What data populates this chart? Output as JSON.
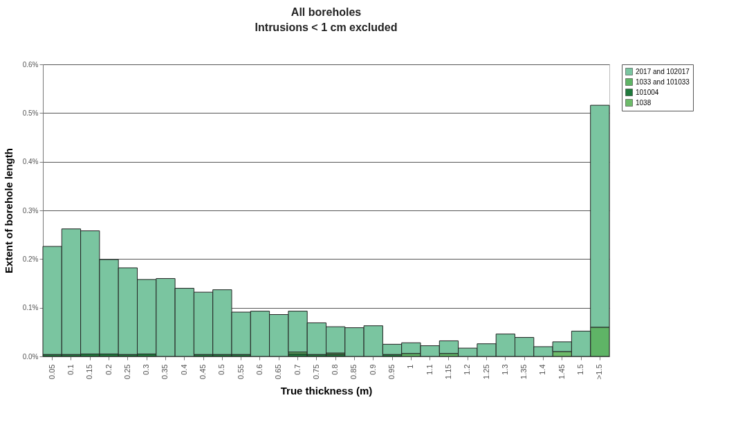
{
  "chart_data": {
    "type": "bar",
    "title": "All boreholes",
    "subtitle": "Intrusions < 1 cm excluded",
    "xlabel": "True thickness (m)",
    "ylabel": "Extent of borehole length",
    "categories": [
      "0.05",
      "0.1",
      "0.15",
      "0.2",
      "0.25",
      "0.3",
      "0.35",
      "0.4",
      "0.45",
      "0.5",
      "0.55",
      "0.6",
      "0.65",
      "0.7",
      "0.75",
      "0.8",
      "0.85",
      "0.9",
      "0.95",
      "1",
      "1.1",
      "1.15",
      "1.2",
      "1.25",
      "1.3",
      "1.35",
      "1.4",
      "1.45",
      "1.5",
      ">1.5"
    ],
    "stacked": true,
    "series": [
      {
        "name": "1038",
        "color": "#6dbb6a",
        "values": [
          null,
          null,
          null,
          null,
          null,
          null,
          null,
          null,
          null,
          null,
          null,
          null,
          null,
          null,
          null,
          null,
          null,
          null,
          null,
          null,
          null,
          null,
          null,
          null,
          null,
          null,
          null,
          0.01,
          null,
          null
        ]
      },
      {
        "name": "101004",
        "color": "#1f7a3c",
        "values": [
          0.004,
          0.004,
          0.005,
          0.005,
          0.004,
          0.005,
          null,
          null,
          0.004,
          0.004,
          0.004,
          null,
          null,
          0.005,
          0.004,
          0.004,
          null,
          null,
          0.004,
          null,
          null,
          null,
          null,
          null,
          null,
          null,
          null,
          null,
          null,
          null
        ]
      },
      {
        "name": "1033 and 101033",
        "color": "#5fb466",
        "values": [
          null,
          null,
          null,
          null,
          null,
          null,
          null,
          null,
          null,
          null,
          null,
          null,
          null,
          0.004,
          null,
          0.003,
          null,
          null,
          null,
          0.006,
          null,
          0.006,
          null,
          null,
          null,
          null,
          null,
          null,
          null,
          0.06
        ]
      },
      {
        "name": "2017 and 102017",
        "color": "#7ac5a0",
        "values": [
          0.222,
          0.258,
          0.253,
          0.194,
          0.178,
          0.153,
          0.16,
          0.14,
          0.128,
          0.133,
          0.087,
          0.093,
          0.086,
          0.084,
          0.065,
          0.054,
          0.059,
          0.063,
          0.021,
          0.022,
          0.022,
          0.026,
          0.017,
          0.026,
          0.046,
          0.039,
          0.02,
          0.02,
          0.052,
          0.456
        ]
      }
    ],
    "ylim": [
      0,
      0.6
    ],
    "yticks": [
      {
        "value": 0,
        "label": "0.0%"
      },
      {
        "value": 0.1,
        "label": "0.1%"
      },
      {
        "value": 0.2,
        "label": "0.2%"
      },
      {
        "value": 0.3,
        "label": "0.3%"
      },
      {
        "value": 0.4,
        "label": "0.4%"
      },
      {
        "value": 0.5,
        "label": "0.5%"
      },
      {
        "value": 0.6,
        "label": "0.6%"
      }
    ],
    "grid": "y",
    "legend": "right"
  }
}
